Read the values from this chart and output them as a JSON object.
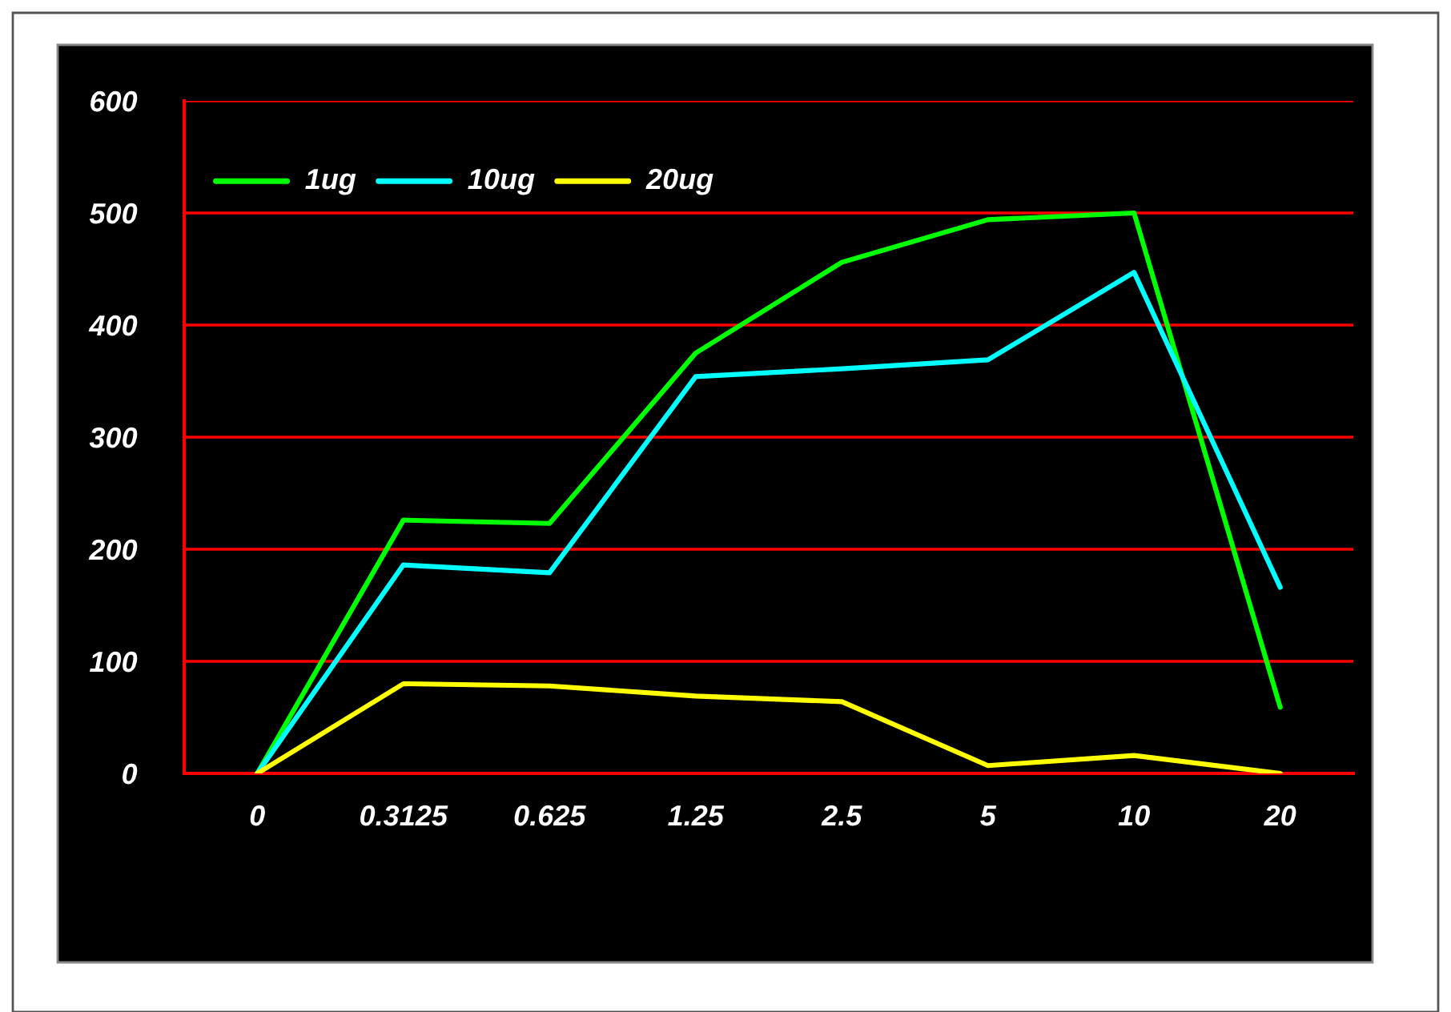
{
  "chart_data": {
    "type": "line",
    "categories": [
      "0",
      "0.3125",
      "0.625",
      "1.25",
      "2.5",
      "5",
      "10",
      "20"
    ],
    "series": [
      {
        "name": "1ug",
        "color": "#00ff00",
        "values": [
          0,
          226,
          223,
          375,
          456,
          494,
          500,
          59
        ]
      },
      {
        "name": "10ug",
        "color": "#00ffff",
        "values": [
          0,
          186,
          179,
          354,
          361,
          369,
          447,
          166
        ]
      },
      {
        "name": "20ug",
        "color": "#ffff00",
        "values": [
          0,
          80,
          78,
          69,
          64,
          7,
          16,
          0
        ]
      }
    ],
    "ylim": [
      0,
      600
    ],
    "yticks": [
      0,
      100,
      200,
      300,
      400,
      500,
      600
    ],
    "grid": "y",
    "legend": "top left",
    "marker": "none",
    "line_style": "solid"
  }
}
